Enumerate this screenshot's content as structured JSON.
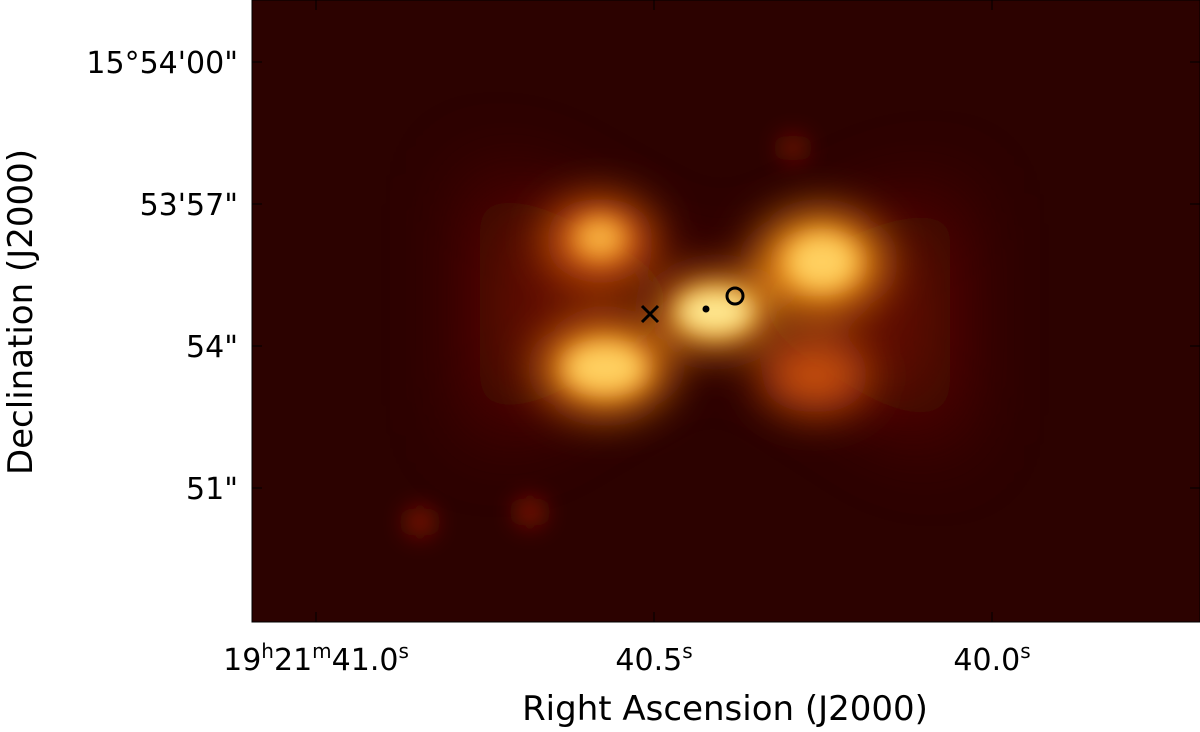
{
  "x_axis": {
    "title": "Right Ascension (J2000)",
    "ticks": [
      [
        "19",
        "h",
        "21",
        "m",
        "41.0",
        "s"
      ],
      [
        "40.5",
        "s"
      ],
      [
        "40.0",
        "s"
      ]
    ]
  },
  "y_axis": {
    "title": "Declination (J2000)",
    "ticks": [
      "15°54'00\"",
      "53'57\"",
      "54\"",
      "51\""
    ]
  }
}
